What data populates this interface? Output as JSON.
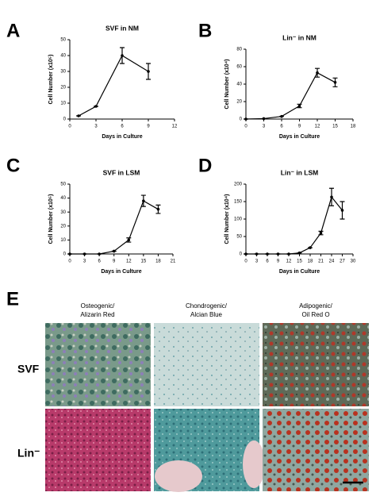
{
  "chart_data": [
    {
      "type": "line",
      "panel": "A",
      "title": "SVF in NM",
      "xlabel": "Days in Culture",
      "ylabel": "Cell Number (x10⁵)",
      "x": [
        1,
        3,
        6,
        9
      ],
      "values": [
        2,
        8,
        40,
        30
      ],
      "errors": [
        0,
        0,
        5,
        5
      ],
      "color": "#000000",
      "xlim": [
        0,
        12
      ],
      "xticks": [
        0,
        3,
        6,
        9,
        12
      ],
      "ylim": [
        0,
        50
      ],
      "yticks": [
        0,
        10,
        20,
        30,
        40,
        50
      ]
    },
    {
      "type": "line",
      "panel": "B",
      "title": "Lin⁻ in NM",
      "xlabel": "Days in Culture",
      "ylabel": "Cell Number (x10⁴)",
      "x": [
        0,
        3,
        6,
        9,
        12,
        15
      ],
      "values": [
        0,
        0.5,
        3,
        15,
        53,
        42
      ],
      "errors": [
        0,
        0,
        0,
        2,
        5,
        5
      ],
      "color": "#000000",
      "xlim": [
        0,
        18
      ],
      "xticks": [
        0,
        3,
        6,
        9,
        12,
        15,
        18
      ],
      "ylim": [
        0,
        80
      ],
      "yticks": [
        0,
        20,
        40,
        60,
        80
      ]
    },
    {
      "type": "line",
      "panel": "C",
      "title": "SVF in LSM",
      "xlabel": "Days in Culture",
      "ylabel": "Cell Number (x10⁵)",
      "x": [
        0,
        3,
        6,
        9,
        12,
        15,
        18
      ],
      "values": [
        0,
        0,
        0,
        2,
        10,
        38,
        32
      ],
      "errors": [
        0,
        0,
        0,
        0,
        1.5,
        4,
        3
      ],
      "color": "#000000",
      "xlim": [
        0,
        21
      ],
      "xticks": [
        0,
        3,
        6,
        9,
        12,
        15,
        18,
        21
      ],
      "ylim": [
        0,
        50
      ],
      "yticks": [
        0,
        10,
        20,
        30,
        40,
        50
      ]
    },
    {
      "type": "line",
      "panel": "D",
      "title": "Lin⁻ in LSM",
      "xlabel": "Days in Culture",
      "ylabel": "Cell Number (x10⁴)",
      "x": [
        0,
        3,
        6,
        9,
        12,
        15,
        18,
        21,
        24,
        27
      ],
      "values": [
        0,
        0,
        0,
        0,
        0,
        3,
        18,
        60,
        163,
        125
      ],
      "errors": [
        0,
        0,
        0,
        0,
        0,
        0,
        0,
        5,
        25,
        25
      ],
      "color": "#000000",
      "xlim": [
        0,
        30
      ],
      "xticks": [
        0,
        3,
        6,
        9,
        12,
        15,
        18,
        21,
        24,
        27,
        30
      ],
      "ylim": [
        0,
        200
      ],
      "yticks": [
        0,
        50,
        100,
        150,
        200
      ]
    }
  ],
  "panel_e": {
    "label": "E",
    "columns": [
      [
        "Osteogenic/",
        "Alizarin Red"
      ],
      [
        "Chondrogenic/",
        "Alcian Blue"
      ],
      [
        "Adipogenic/",
        "Oil Red O"
      ]
    ],
    "rows": [
      "SVF",
      "Lin⁻"
    ]
  }
}
